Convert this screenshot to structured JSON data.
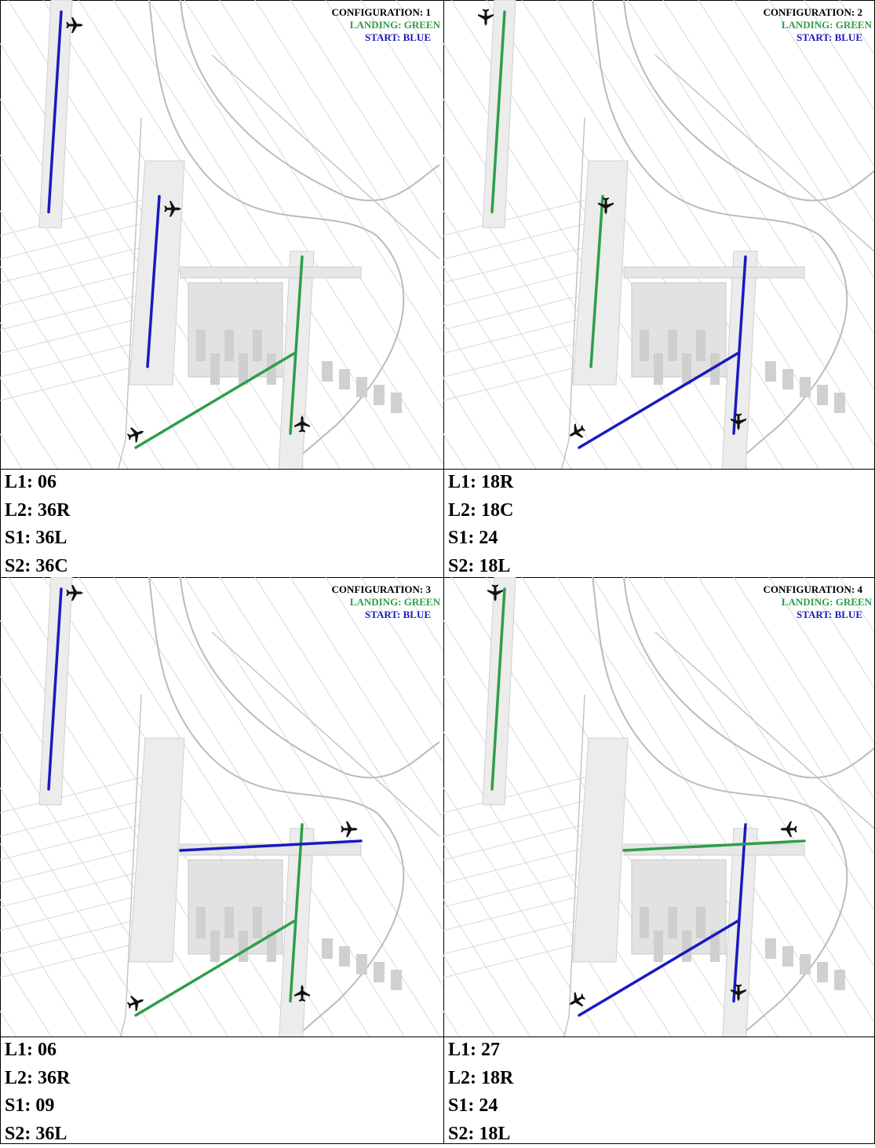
{
  "panels": [
    {
      "configuration": "CONFIGURATION: 1",
      "landing": "LANDING: GREEN",
      "start": "START: BLUE",
      "runways": [
        "L1: 06",
        "L2: 36R",
        "S1: 36L",
        "S2: 36C"
      ]
    },
    {
      "configuration": "CONFIGURATION: 2",
      "landing": "LANDING: GREEN",
      "start": "START: BLUE",
      "runways": [
        "L1: 18R",
        "L2: 18C",
        "S1: 24",
        "S2: 18L"
      ]
    },
    {
      "configuration": "CONFIGURATION: 3",
      "landing": "LANDING: GREEN",
      "start": "START: BLUE",
      "runways": [
        "L1: 06",
        "L2: 36R",
        "S1: 09",
        "S2: 36L"
      ]
    },
    {
      "configuration": "CONFIGURATION: 4",
      "landing": "LANDING: GREEN",
      "start": "START: BLUE",
      "runways": [
        "L1: 27",
        "L2: 18R",
        "S1: 24",
        "S2: 18L"
      ]
    }
  ]
}
